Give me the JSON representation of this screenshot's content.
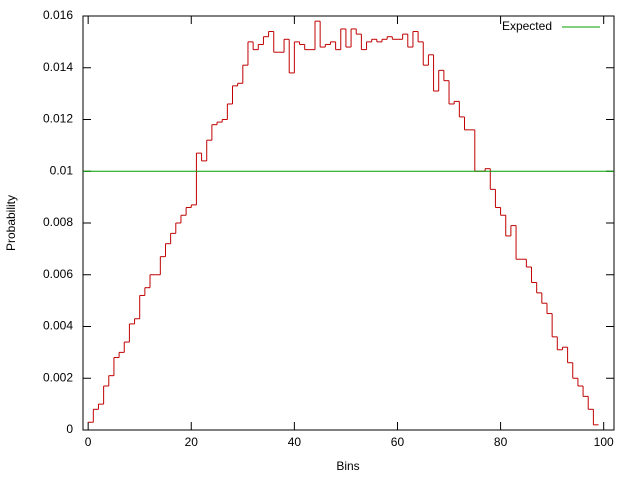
{
  "chart_data": {
    "type": "step",
    "xlabel": "Bins",
    "ylabel": "Probability",
    "x": [
      0,
      1,
      2,
      3,
      4,
      5,
      6,
      7,
      8,
      9,
      10,
      11,
      12,
      13,
      14,
      15,
      16,
      17,
      18,
      19,
      20,
      21,
      22,
      23,
      24,
      25,
      26,
      27,
      28,
      29,
      30,
      31,
      32,
      33,
      34,
      35,
      36,
      37,
      38,
      39,
      40,
      41,
      42,
      43,
      44,
      45,
      46,
      47,
      48,
      49,
      50,
      51,
      52,
      53,
      54,
      55,
      56,
      57,
      58,
      59,
      60,
      61,
      62,
      63,
      64,
      65,
      66,
      67,
      68,
      69,
      70,
      71,
      72,
      73,
      74,
      75,
      76,
      77,
      78,
      79,
      80,
      81,
      82,
      83,
      84,
      85,
      86,
      87,
      88,
      89,
      90,
      91,
      92,
      93,
      94,
      95,
      96,
      97,
      98
    ],
    "series": [
      {
        "color": "#c00000",
        "values": [
          0.0003,
          0.0008,
          0.001,
          0.0017,
          0.0021,
          0.0028,
          0.003,
          0.0034,
          0.0041,
          0.0043,
          0.0052,
          0.0055,
          0.006,
          0.006,
          0.0067,
          0.0072,
          0.0076,
          0.008,
          0.0083,
          0.0086,
          0.0087,
          0.0107,
          0.0104,
          0.0112,
          0.0118,
          0.0119,
          0.012,
          0.0126,
          0.0133,
          0.0134,
          0.0141,
          0.015,
          0.0147,
          0.0149,
          0.0152,
          0.0154,
          0.0146,
          0.0146,
          0.0151,
          0.0138,
          0.015,
          0.0149,
          0.0147,
          0.0147,
          0.0158,
          0.0148,
          0.0149,
          0.015,
          0.0147,
          0.0155,
          0.0148,
          0.0155,
          0.0153,
          0.0147,
          0.015,
          0.0151,
          0.015,
          0.0151,
          0.0152,
          0.0151,
          0.0151,
          0.0153,
          0.0148,
          0.0154,
          0.015,
          0.0141,
          0.0145,
          0.0131,
          0.0139,
          0.0135,
          0.0126,
          0.0127,
          0.0121,
          0.0116,
          0.0116,
          0.01,
          0.01,
          0.0101,
          0.0093,
          0.0086,
          0.0083,
          0.0075,
          0.0079,
          0.0066,
          0.0066,
          0.0063,
          0.0057,
          0.0053,
          0.0049,
          0.0045,
          0.0036,
          0.0031,
          0.0032,
          0.0026,
          0.002,
          0.0017,
          0.0013,
          0.0008,
          0.0002
        ]
      }
    ],
    "expected": {
      "name": "Expected",
      "value": 0.01,
      "color": "#00a000"
    },
    "xlim": [
      -1,
      102
    ],
    "ylim": [
      0,
      0.016
    ],
    "xticks": [
      0,
      20,
      40,
      60,
      80,
      100
    ],
    "yticks": [
      0,
      0.002,
      0.004,
      0.006,
      0.008,
      0.01,
      0.012,
      0.014,
      0.016
    ],
    "legend": "top-right"
  }
}
